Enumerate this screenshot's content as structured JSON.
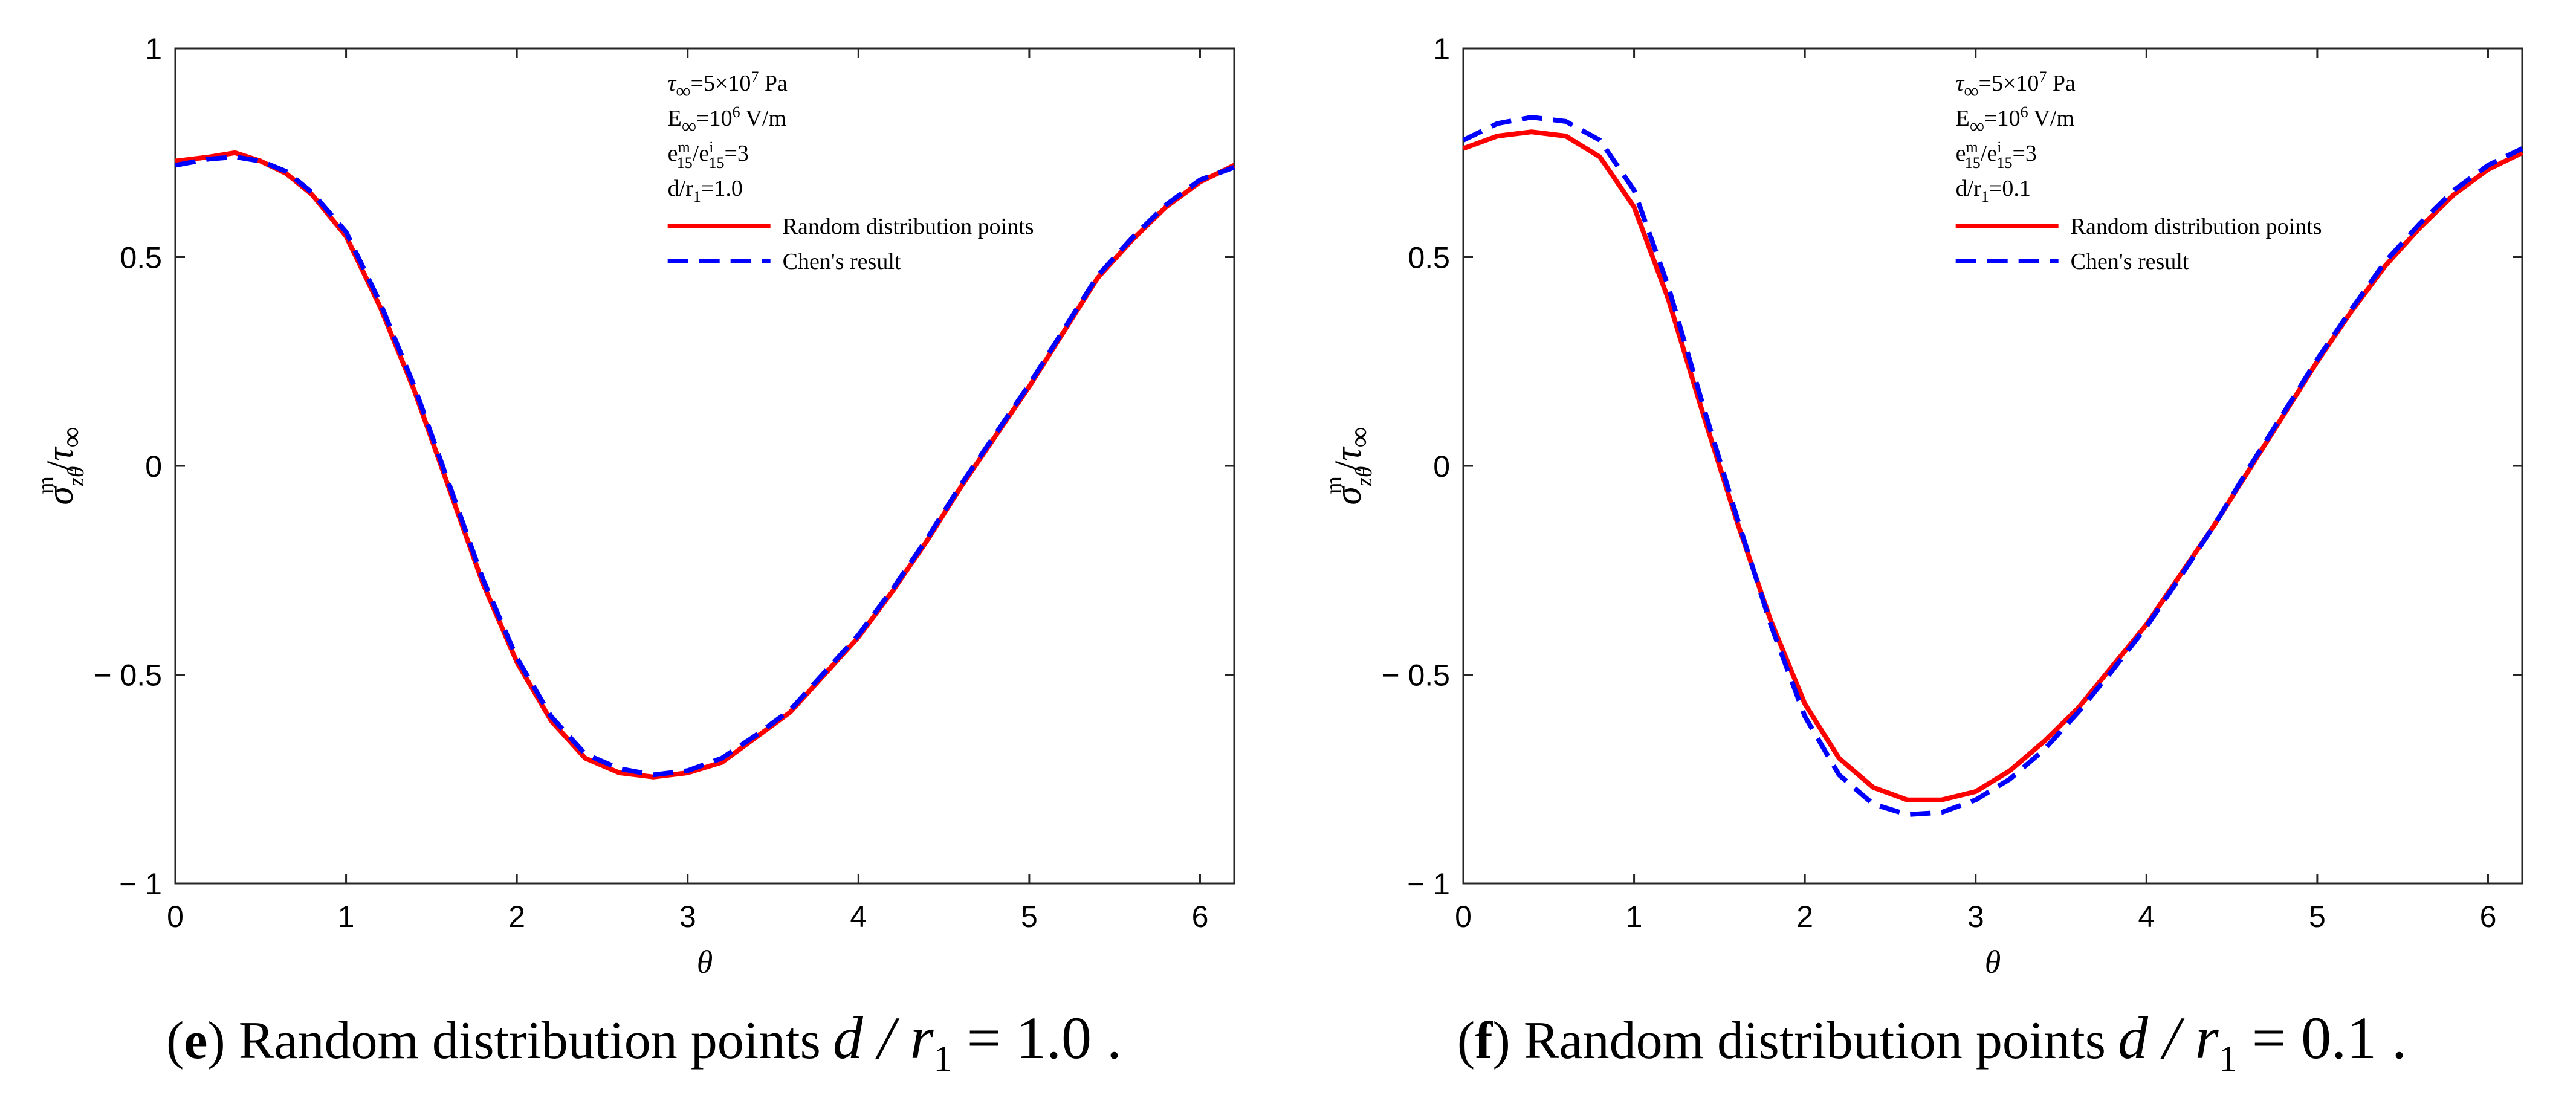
{
  "chart_data": [
    {
      "type": "line",
      "panel": "e",
      "xlabel": "θ",
      "ylabel": "σ_zθ^m / τ_∞",
      "xlim": [
        0,
        6.2
      ],
      "ylim": [
        -1,
        1
      ],
      "xticks": [
        0,
        1,
        2,
        3,
        4,
        5,
        6
      ],
      "xtick_labels": [
        "0",
        "1",
        "2",
        "3",
        "4",
        "5",
        "6"
      ],
      "yticks": [
        -1,
        -0.5,
        0,
        0.5,
        1
      ],
      "ytick_labels": [
        "− 1",
        "− 0.5",
        "0",
        "0.5",
        "1"
      ],
      "grid": false,
      "legend": "top-center",
      "params": {
        "tau": {
          "base": "τ",
          "sub": "∞",
          "mid": "=5×10",
          "sup": "7",
          "tail": " Pa"
        },
        "E": {
          "base": "E",
          "sub": "∞",
          "mid": "=10",
          "sup": "6",
          "tail": " V/m"
        },
        "e": {
          "text1": "e",
          "sup1": "m",
          "sub1": "15",
          "text2": "/e",
          "sup2": "i",
          "sub2": "15",
          "tail": "=3"
        },
        "d": {
          "base": "d/r",
          "sub": "1",
          "tail": "=1.0"
        }
      },
      "x": [
        0,
        0.2,
        0.35,
        0.5,
        0.65,
        0.8,
        1.0,
        1.2,
        1.4,
        1.6,
        1.8,
        2.0,
        2.2,
        2.4,
        2.6,
        2.8,
        3.0,
        3.2,
        3.4,
        3.6,
        3.8,
        4.0,
        4.2,
        4.4,
        4.6,
        4.8,
        5.0,
        5.2,
        5.4,
        5.6,
        5.8,
        6.0,
        6.2
      ],
      "series": [
        {
          "name": "Random distribution points",
          "color": "#ff0000",
          "dash": "solid",
          "values": [
            0.73,
            0.74,
            0.75,
            0.73,
            0.7,
            0.65,
            0.55,
            0.38,
            0.18,
            -0.05,
            -0.28,
            -0.47,
            -0.61,
            -0.7,
            -0.735,
            -0.745,
            -0.735,
            -0.71,
            -0.65,
            -0.59,
            -0.5,
            -0.41,
            -0.3,
            -0.18,
            -0.05,
            0.07,
            0.19,
            0.32,
            0.45,
            0.54,
            0.62,
            0.68,
            0.72
          ]
        },
        {
          "name": "Chen's result",
          "color": "#0000ff",
          "dash": "dashed",
          "values": [
            0.72,
            0.735,
            0.74,
            0.73,
            0.705,
            0.655,
            0.56,
            0.39,
            0.19,
            -0.04,
            -0.27,
            -0.46,
            -0.6,
            -0.69,
            -0.725,
            -0.74,
            -0.73,
            -0.7,
            -0.645,
            -0.585,
            -0.495,
            -0.405,
            -0.295,
            -0.175,
            -0.045,
            0.075,
            0.195,
            0.325,
            0.455,
            0.545,
            0.625,
            0.685,
            0.715
          ]
        }
      ],
      "caption": {
        "letter": "e",
        "text": " Random distribution points",
        "math": "d / r",
        "math_sub": "1",
        "math_tail": " = 1.0 ."
      }
    },
    {
      "type": "line",
      "panel": "f",
      "xlabel": "θ",
      "ylabel": "σ_zθ^m / τ_∞",
      "xlim": [
        0,
        6.2
      ],
      "ylim": [
        -1,
        1
      ],
      "xticks": [
        0,
        1,
        2,
        3,
        4,
        5,
        6
      ],
      "xtick_labels": [
        "0",
        "1",
        "2",
        "3",
        "4",
        "5",
        "6"
      ],
      "yticks": [
        -1,
        -0.5,
        0,
        0.5,
        1
      ],
      "ytick_labels": [
        "− 1",
        "− 0.5",
        "0",
        "0.5",
        "1"
      ],
      "grid": false,
      "legend": "top-center",
      "params": {
        "tau": {
          "base": "τ",
          "sub": "∞",
          "mid": "=5×10",
          "sup": "7",
          "tail": " Pa"
        },
        "E": {
          "base": "E",
          "sub": "∞",
          "mid": "=10",
          "sup": "6",
          "tail": " V/m"
        },
        "e": {
          "text1": "e",
          "sup1": "m",
          "sub1": "15",
          "text2": "/e",
          "sup2": "i",
          "sub2": "15",
          "tail": "=3"
        },
        "d": {
          "base": "d/r",
          "sub": "1",
          "tail": "=0.1"
        }
      },
      "x": [
        0,
        0.2,
        0.4,
        0.6,
        0.8,
        1.0,
        1.2,
        1.4,
        1.6,
        1.8,
        2.0,
        2.2,
        2.4,
        2.6,
        2.8,
        3.0,
        3.2,
        3.4,
        3.6,
        3.8,
        4.0,
        4.2,
        4.4,
        4.6,
        4.8,
        5.0,
        5.2,
        5.4,
        5.6,
        5.8,
        6.0,
        6.2
      ],
      "series": [
        {
          "name": "Random distribution points",
          "color": "#ff0000",
          "dash": "solid",
          "values": [
            0.76,
            0.79,
            0.8,
            0.79,
            0.74,
            0.62,
            0.4,
            0.13,
            -0.13,
            -0.37,
            -0.57,
            -0.7,
            -0.77,
            -0.8,
            -0.8,
            -0.78,
            -0.73,
            -0.66,
            -0.58,
            -0.48,
            -0.38,
            -0.26,
            -0.14,
            -0.01,
            0.12,
            0.25,
            0.37,
            0.48,
            0.57,
            0.65,
            0.71,
            0.75
          ]
        },
        {
          "name": "Chen's result",
          "color": "#0000ff",
          "dash": "dashed",
          "values": [
            0.78,
            0.82,
            0.835,
            0.825,
            0.78,
            0.66,
            0.43,
            0.15,
            -0.12,
            -0.38,
            -0.6,
            -0.74,
            -0.81,
            -0.835,
            -0.83,
            -0.8,
            -0.75,
            -0.68,
            -0.59,
            -0.49,
            -0.385,
            -0.265,
            -0.14,
            -0.005,
            0.125,
            0.255,
            0.375,
            0.49,
            0.58,
            0.66,
            0.72,
            0.76
          ]
        }
      ],
      "caption": {
        "letter": "f",
        "text": " Random distribution points",
        "math": "d / r",
        "math_sub": "1",
        "math_tail": " = 0.1 ."
      }
    }
  ]
}
